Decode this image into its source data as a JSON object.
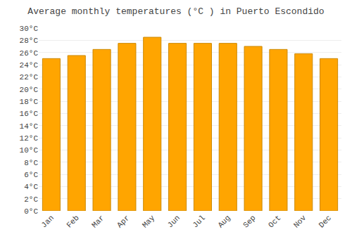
{
  "chart_data": {
    "type": "bar",
    "title": "Average monthly temperatures (°C ) in Puerto Escondido",
    "categories": [
      "Jan",
      "Feb",
      "Mar",
      "Apr",
      "May",
      "Jun",
      "Jul",
      "Aug",
      "Sep",
      "Oct",
      "Nov",
      "Dec"
    ],
    "values": [
      25.0,
      25.5,
      26.5,
      27.5,
      28.5,
      27.5,
      27.5,
      27.5,
      27.0,
      26.5,
      25.8,
      25.0
    ],
    "color": "#FFA500",
    "ylim": [
      0,
      30
    ],
    "yticks": [
      {
        "value": 0,
        "label": "0°C"
      },
      {
        "value": 2,
        "label": "2°C"
      },
      {
        "value": 4,
        "label": "4°C"
      },
      {
        "value": 6,
        "label": "6°C"
      },
      {
        "value": 8,
        "label": "8°C"
      },
      {
        "value": 10,
        "label": "10°C"
      },
      {
        "value": 12,
        "label": "12°C"
      },
      {
        "value": 14,
        "label": "14°C"
      },
      {
        "value": 16,
        "label": "16°C"
      },
      {
        "value": 18,
        "label": "18°C"
      },
      {
        "value": 20,
        "label": "20°C"
      },
      {
        "value": 22,
        "label": "22°C"
      },
      {
        "value": 24,
        "label": "24°C"
      },
      {
        "value": 26,
        "label": "26°C"
      },
      {
        "value": 28,
        "label": "28°C"
      },
      {
        "value": 30,
        "label": "30°C"
      }
    ],
    "grid": true
  }
}
